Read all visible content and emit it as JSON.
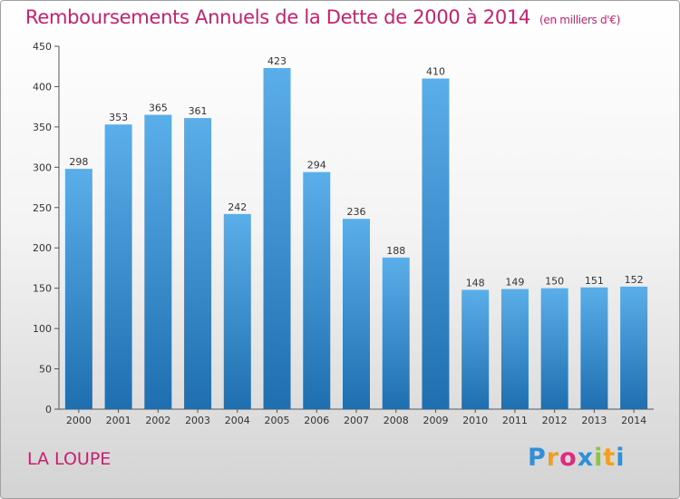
{
  "chart_data": {
    "type": "bar",
    "title": "Remboursements Annuels de la Dette de 2000 à 2014",
    "subtitle": "(en milliers d'€)",
    "categories": [
      "2000",
      "2001",
      "2002",
      "2003",
      "2004",
      "2005",
      "2006",
      "2007",
      "2008",
      "2009",
      "2010",
      "2011",
      "2012",
      "2013",
      "2014"
    ],
    "values": [
      298,
      353,
      365,
      361,
      242,
      423,
      294,
      236,
      188,
      410,
      148,
      149,
      150,
      151,
      152
    ],
    "yticks": [
      0,
      50,
      100,
      150,
      200,
      250,
      300,
      350,
      400,
      450
    ],
    "ylim": [
      0,
      450
    ],
    "xlabel": "",
    "ylabel": "",
    "grid": false,
    "legend": "none"
  },
  "footer": {
    "city": "LA LOUPE",
    "logo": {
      "letters": [
        "P",
        "r",
        "o",
        "x",
        "i",
        "t",
        "i"
      ],
      "text": "Proxiti"
    }
  },
  "colors": {
    "accent": "#c8206e",
    "bar_top": "#5aaee9",
    "bar_bottom": "#1f6fb0",
    "axis": "#555555"
  }
}
